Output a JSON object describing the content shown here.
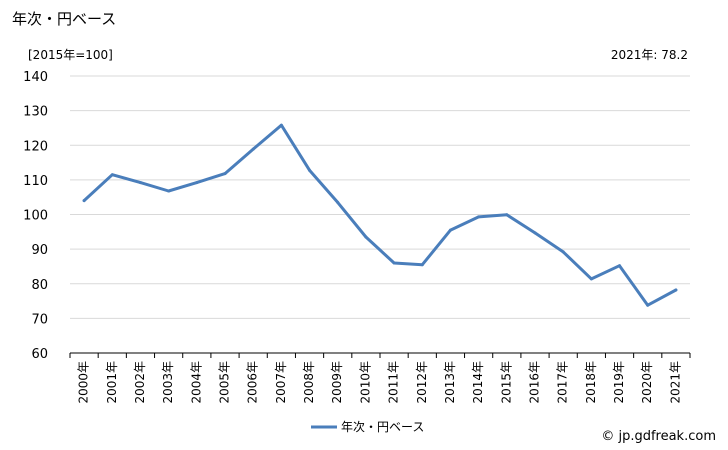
{
  "header": {
    "title": "年次・円ベース",
    "unit": "[2015年=100]",
    "latest": "2021年: 78.2"
  },
  "footer": {
    "source": "© jp.gdfreak.com"
  },
  "colors": {
    "series": "#4a7ebb",
    "grid": "#d9d9d9",
    "axis": "#000000"
  },
  "chart_data": {
    "type": "line",
    "title": "年次・円ベース",
    "xlabel": "",
    "ylabel": "[2015年=100]",
    "ylim": [
      60,
      140
    ],
    "yticks": [
      60,
      70,
      80,
      90,
      100,
      110,
      120,
      130,
      140
    ],
    "grid": true,
    "legend_position": "bottom-center",
    "categories": [
      "2000年",
      "2001年",
      "2002年",
      "2003年",
      "2004年",
      "2005年",
      "2006年",
      "2007年",
      "2008年",
      "2009年",
      "2010年",
      "2011年",
      "2012年",
      "2013年",
      "2014年",
      "2015年",
      "2016年",
      "2017年",
      "2018年",
      "2019年",
      "2020年",
      "2021年"
    ],
    "series": [
      {
        "name": "年次・円ベース",
        "values": [
          104.0,
          111.5,
          109.2,
          106.8,
          109.2,
          111.8,
          118.9,
          125.8,
          112.8,
          103.5,
          93.5,
          86.0,
          85.5,
          95.5,
          99.3,
          99.9,
          94.7,
          89.2,
          81.4,
          85.2,
          73.8,
          78.2
        ]
      }
    ]
  }
}
